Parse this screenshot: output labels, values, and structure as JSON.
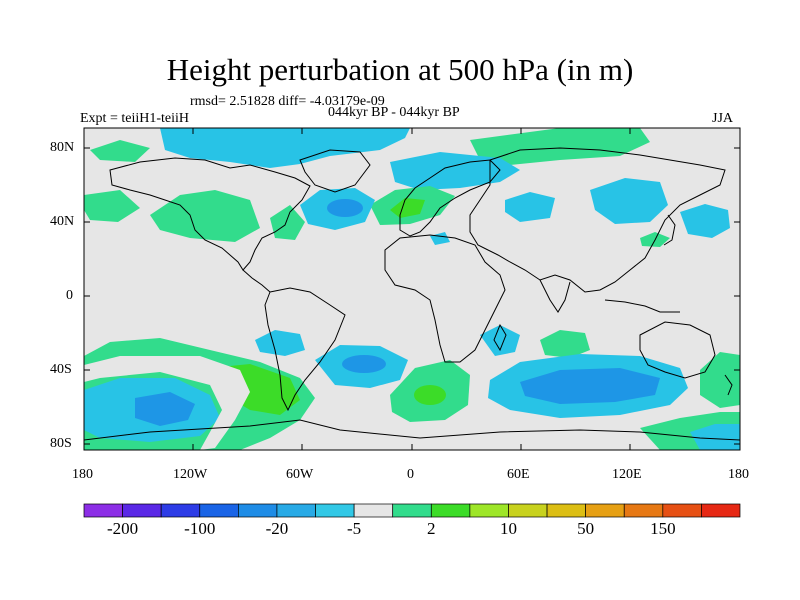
{
  "title": "Height perturbation at 500 hPa (in m)",
  "stats": "rmsd= 2.51828 diff= -4.03179e-09",
  "experiment": "Expt = teiiH1-teiiH",
  "period": "044kyr BP - 044kyr BP",
  "season": "JJA",
  "lat_labels": [
    "80N",
    "40N",
    "0",
    "40S",
    "80S"
  ],
  "lon_labels": [
    "180",
    "120W",
    "60W",
    "0",
    "60E",
    "120E",
    "180"
  ],
  "colorbar": {
    "colors": [
      "#8c2ee6",
      "#5a28e6",
      "#2d3ce6",
      "#1a64e6",
      "#1e8ce6",
      "#28aae6",
      "#32c8e6",
      "#e6e6e6",
      "#32dc8c",
      "#3cdc28",
      "#9ee628",
      "#c8d21e",
      "#dcbe14",
      "#e6a014",
      "#e67814",
      "#e65014",
      "#e62814"
    ],
    "labels": [
      "-200",
      "-100",
      "-20",
      "-5",
      "2",
      "10",
      "50",
      "150"
    ]
  },
  "palette": {
    "ocean_land_bg": "#e6e6e6",
    "light_blue": "#28c3e6",
    "mid_blue": "#1e96e6",
    "green_light": "#32dc8c",
    "green": "#3cdc28"
  }
}
